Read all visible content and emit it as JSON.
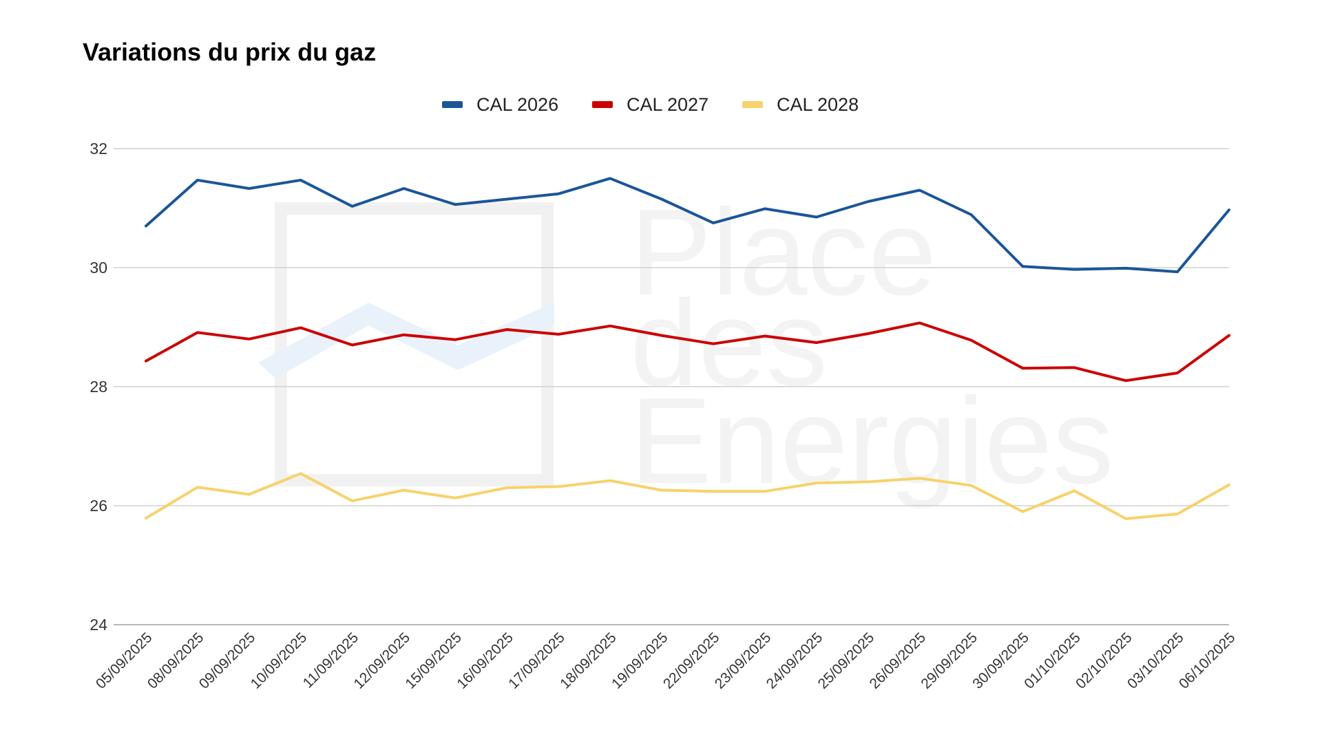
{
  "watermark": {
    "text_lines": [
      "Place",
      "des",
      "Energies"
    ]
  },
  "chart_data": {
    "type": "line",
    "title": "Variations du prix du gaz",
    "xlabel": "",
    "ylabel": "",
    "ylim": [
      24,
      32
    ],
    "yticks": [
      24,
      26,
      28,
      30,
      32
    ],
    "grid": true,
    "legend_position": "top-center",
    "categories": [
      "05/09/2025",
      "08/09/2025",
      "09/09/2025",
      "10/09/2025",
      "11/09/2025",
      "12/09/2025",
      "15/09/2025",
      "16/09/2025",
      "17/09/2025",
      "18/09/2025",
      "19/09/2025",
      "22/09/2025",
      "23/09/2025",
      "24/09/2025",
      "25/09/2025",
      "26/09/2025",
      "29/09/2025",
      "30/09/2025",
      "01/10/2025",
      "02/10/2025",
      "03/10/2025",
      "06/10/2025"
    ],
    "series": [
      {
        "name": "CAL 2026",
        "color": "#1a5599",
        "values": [
          30.7,
          31.47,
          31.33,
          31.47,
          31.03,
          31.33,
          31.06,
          31.15,
          31.24,
          31.5,
          31.15,
          30.75,
          30.99,
          30.85,
          31.11,
          31.3,
          30.89,
          30.02,
          29.97,
          29.99,
          29.93,
          30.97
        ]
      },
      {
        "name": "CAL 2027",
        "color": "#cc0000",
        "values": [
          28.43,
          28.91,
          28.8,
          28.99,
          28.7,
          28.87,
          28.79,
          28.96,
          28.88,
          29.02,
          28.86,
          28.72,
          28.85,
          28.74,
          28.89,
          29.07,
          28.78,
          28.31,
          28.32,
          28.1,
          28.23,
          28.86
        ]
      },
      {
        "name": "CAL 2028",
        "color": "#f7d26b",
        "values": [
          25.79,
          26.31,
          26.19,
          26.54,
          26.08,
          26.26,
          26.13,
          26.3,
          26.32,
          26.42,
          26.26,
          26.24,
          26.24,
          26.38,
          26.4,
          26.46,
          26.34,
          25.9,
          26.25,
          25.78,
          25.86,
          26.35
        ]
      }
    ]
  }
}
